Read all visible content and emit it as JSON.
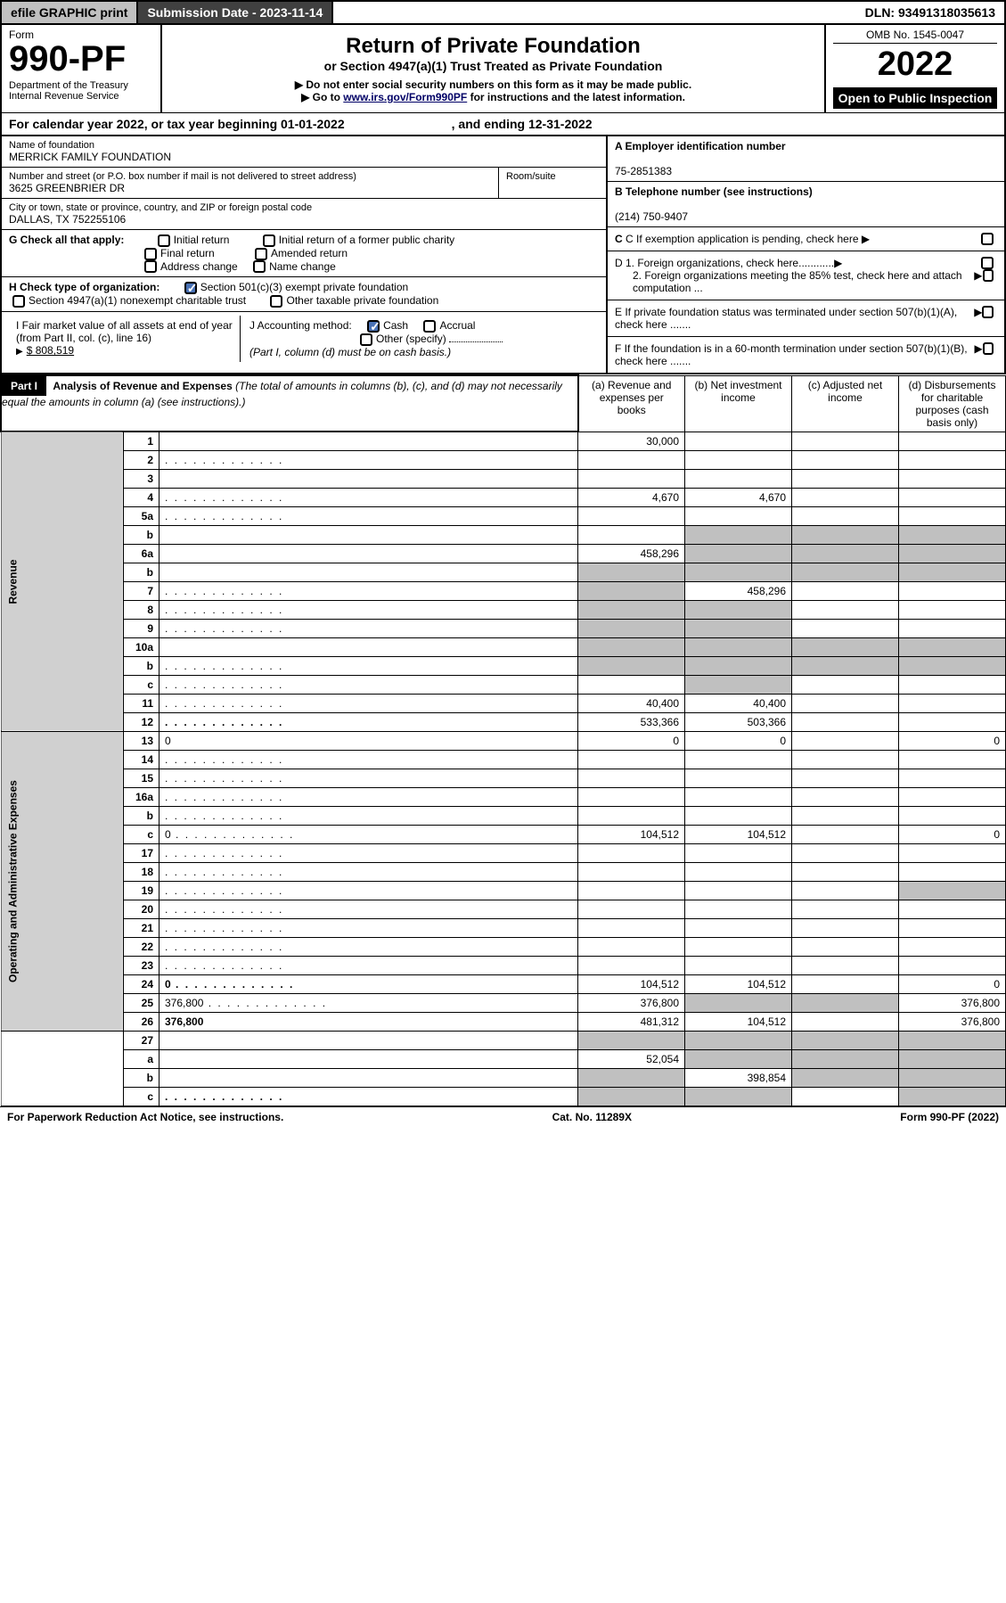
{
  "topbar": {
    "efile": "efile GRAPHIC print",
    "submission_label": "Submission Date - 2023-11-14",
    "dln": "DLN: 93491318035613"
  },
  "header": {
    "form_label": "Form",
    "form_number": "990-PF",
    "dept": "Department of the Treasury",
    "irs": "Internal Revenue Service",
    "title": "Return of Private Foundation",
    "subtitle": "or Section 4947(a)(1) Trust Treated as Private Foundation",
    "instr1": "▶ Do not enter social security numbers on this form as it may be made public.",
    "instr2_pre": "▶ Go to ",
    "instr2_link": "www.irs.gov/Form990PF",
    "instr2_post": " for instructions and the latest information.",
    "omb": "OMB No. 1545-0047",
    "year": "2022",
    "open": "Open to Public Inspection"
  },
  "calyear": {
    "text1": "For calendar year 2022, or tax year beginning 01-01-2022",
    "text2": ", and ending 12-31-2022"
  },
  "info": {
    "name_lbl": "Name of foundation",
    "name": "MERRICK FAMILY FOUNDATION",
    "addr_lbl": "Number and street (or P.O. box number if mail is not delivered to street address)",
    "addr": "3625 GREENBRIER DR",
    "room_lbl": "Room/suite",
    "city_lbl": "City or town, state or province, country, and ZIP or foreign postal code",
    "city": "DALLAS, TX  752255106",
    "ein_lbl": "A Employer identification number",
    "ein": "75-2851383",
    "phone_lbl": "B Telephone number (see instructions)",
    "phone": "(214) 750-9407",
    "c_lbl": "C If exemption application is pending, check here",
    "d1_lbl": "D 1. Foreign organizations, check here............",
    "d2_lbl": "2. Foreign organizations meeting the 85% test, check here and attach computation ...",
    "e_lbl": "E  If private foundation status was terminated under section 507(b)(1)(A), check here .......",
    "f_lbl": "F  If the foundation is in a 60-month termination under section 507(b)(1)(B), check here .......",
    "g_lbl": "G Check all that apply:",
    "g_opts": [
      "Initial return",
      "Initial return of a former public charity",
      "Final return",
      "Amended return",
      "Address change",
      "Name change"
    ],
    "h_lbl": "H Check type of organization:",
    "h_opt1": "Section 501(c)(3) exempt private foundation",
    "h_opt2": "Section 4947(a)(1) nonexempt charitable trust",
    "h_opt3": "Other taxable private foundation",
    "i_lbl": "I Fair market value of all assets at end of year (from Part II, col. (c), line 16)",
    "i_val": "$  808,519",
    "j_lbl": "J Accounting method:",
    "j_cash": "Cash",
    "j_accrual": "Accrual",
    "j_other": "Other (specify)",
    "j_note": "(Part I, column (d) must be on cash basis.)"
  },
  "part1": {
    "label": "Part I",
    "title": "Analysis of Revenue and Expenses",
    "note": "(The total of amounts in columns (b), (c), and (d) may not necessarily equal the amounts in column (a) (see instructions).)",
    "col_a": "(a) Revenue and expenses per books",
    "col_b": "(b) Net investment income",
    "col_c": "(c) Adjusted net income",
    "col_d": "(d) Disbursements for charitable purposes (cash basis only)"
  },
  "sections": {
    "revenue": "Revenue",
    "opexp": "Operating and Administrative Expenses"
  },
  "rows": [
    {
      "n": "1",
      "d": "",
      "a": "30,000",
      "b": "",
      "c": "",
      "sec": "rev"
    },
    {
      "n": "2",
      "d": "",
      "a": "",
      "b": "",
      "c": "",
      "dots": true,
      "sec": "rev"
    },
    {
      "n": "3",
      "d": "",
      "a": "",
      "b": "",
      "c": "",
      "sec": "rev"
    },
    {
      "n": "4",
      "d": "",
      "a": "4,670",
      "b": "4,670",
      "c": "",
      "dots": true,
      "sec": "rev"
    },
    {
      "n": "5a",
      "d": "",
      "a": "",
      "b": "",
      "c": "",
      "dots": true,
      "sec": "rev"
    },
    {
      "n": "b",
      "d": "",
      "a": "",
      "b": "",
      "c": "",
      "grey": "bcd",
      "sec": "rev"
    },
    {
      "n": "6a",
      "d": "",
      "a": "458,296",
      "b": "",
      "c": "",
      "grey": "bcd",
      "sec": "rev"
    },
    {
      "n": "b",
      "d": "",
      "a": "",
      "b": "",
      "c": "",
      "grey": "abcd",
      "sec": "rev"
    },
    {
      "n": "7",
      "d": "",
      "a": "",
      "b": "458,296",
      "c": "",
      "grey": "a",
      "dots": true,
      "sec": "rev"
    },
    {
      "n": "8",
      "d": "",
      "a": "",
      "b": "",
      "c": "",
      "grey": "ab",
      "dots": true,
      "sec": "rev"
    },
    {
      "n": "9",
      "d": "",
      "a": "",
      "b": "",
      "c": "",
      "grey": "ab",
      "dots": true,
      "sec": "rev"
    },
    {
      "n": "10a",
      "d": "",
      "a": "",
      "b": "",
      "c": "",
      "grey": "abcd",
      "sec": "rev"
    },
    {
      "n": "b",
      "d": "",
      "a": "",
      "b": "",
      "c": "",
      "grey": "abcd",
      "dots": true,
      "sec": "rev"
    },
    {
      "n": "c",
      "d": "",
      "a": "",
      "b": "",
      "c": "",
      "grey": "b",
      "dots": true,
      "sec": "rev"
    },
    {
      "n": "11",
      "d": "",
      "a": "40,400",
      "b": "40,400",
      "c": "",
      "dots": true,
      "sec": "rev"
    },
    {
      "n": "12",
      "d": "",
      "a": "533,366",
      "b": "503,366",
      "c": "",
      "bold": true,
      "dots": true,
      "sec": "rev"
    },
    {
      "n": "13",
      "d": "0",
      "a": "0",
      "b": "0",
      "c": "",
      "sec": "exp"
    },
    {
      "n": "14",
      "d": "",
      "a": "",
      "b": "",
      "c": "",
      "dots": true,
      "sec": "exp"
    },
    {
      "n": "15",
      "d": "",
      "a": "",
      "b": "",
      "c": "",
      "dots": true,
      "sec": "exp"
    },
    {
      "n": "16a",
      "d": "",
      "a": "",
      "b": "",
      "c": "",
      "dots": true,
      "sec": "exp"
    },
    {
      "n": "b",
      "d": "",
      "a": "",
      "b": "",
      "c": "",
      "dots": true,
      "sec": "exp"
    },
    {
      "n": "c",
      "d": "0",
      "a": "104,512",
      "b": "104,512",
      "c": "",
      "dots": true,
      "sec": "exp"
    },
    {
      "n": "17",
      "d": "",
      "a": "",
      "b": "",
      "c": "",
      "dots": true,
      "sec": "exp"
    },
    {
      "n": "18",
      "d": "",
      "a": "",
      "b": "",
      "c": "",
      "dots": true,
      "sec": "exp"
    },
    {
      "n": "19",
      "d": "",
      "a": "",
      "b": "",
      "c": "",
      "grey": "d",
      "dots": true,
      "sec": "exp"
    },
    {
      "n": "20",
      "d": "",
      "a": "",
      "b": "",
      "c": "",
      "dots": true,
      "sec": "exp"
    },
    {
      "n": "21",
      "d": "",
      "a": "",
      "b": "",
      "c": "",
      "dots": true,
      "sec": "exp"
    },
    {
      "n": "22",
      "d": "",
      "a": "",
      "b": "",
      "c": "",
      "dots": true,
      "sec": "exp"
    },
    {
      "n": "23",
      "d": "",
      "a": "",
      "b": "",
      "c": "",
      "dots": true,
      "sec": "exp"
    },
    {
      "n": "24",
      "d": "0",
      "a": "104,512",
      "b": "104,512",
      "c": "",
      "bold": true,
      "dots": true,
      "sec": "exp"
    },
    {
      "n": "25",
      "d": "376,800",
      "a": "376,800",
      "b": "",
      "c": "",
      "grey": "bc",
      "dots": true,
      "sec": "exp"
    },
    {
      "n": "26",
      "d": "376,800",
      "a": "481,312",
      "b": "104,512",
      "c": "",
      "bold": true,
      "sec": "exp"
    },
    {
      "n": "27",
      "d": "",
      "a": "",
      "b": "",
      "c": "",
      "grey": "abcd",
      "sec": "none"
    },
    {
      "n": "a",
      "d": "",
      "a": "52,054",
      "b": "",
      "c": "",
      "bold": true,
      "grey": "bcd",
      "sec": "none"
    },
    {
      "n": "b",
      "d": "",
      "a": "",
      "b": "398,854",
      "c": "",
      "bold": true,
      "grey": "acd",
      "sec": "none"
    },
    {
      "n": "c",
      "d": "",
      "a": "",
      "b": "",
      "c": "",
      "bold": true,
      "grey": "abd",
      "dots": true,
      "sec": "none"
    }
  ],
  "footer": {
    "left": "For Paperwork Reduction Act Notice, see instructions.",
    "mid": "Cat. No. 11289X",
    "right": "Form 990-PF (2022)"
  }
}
